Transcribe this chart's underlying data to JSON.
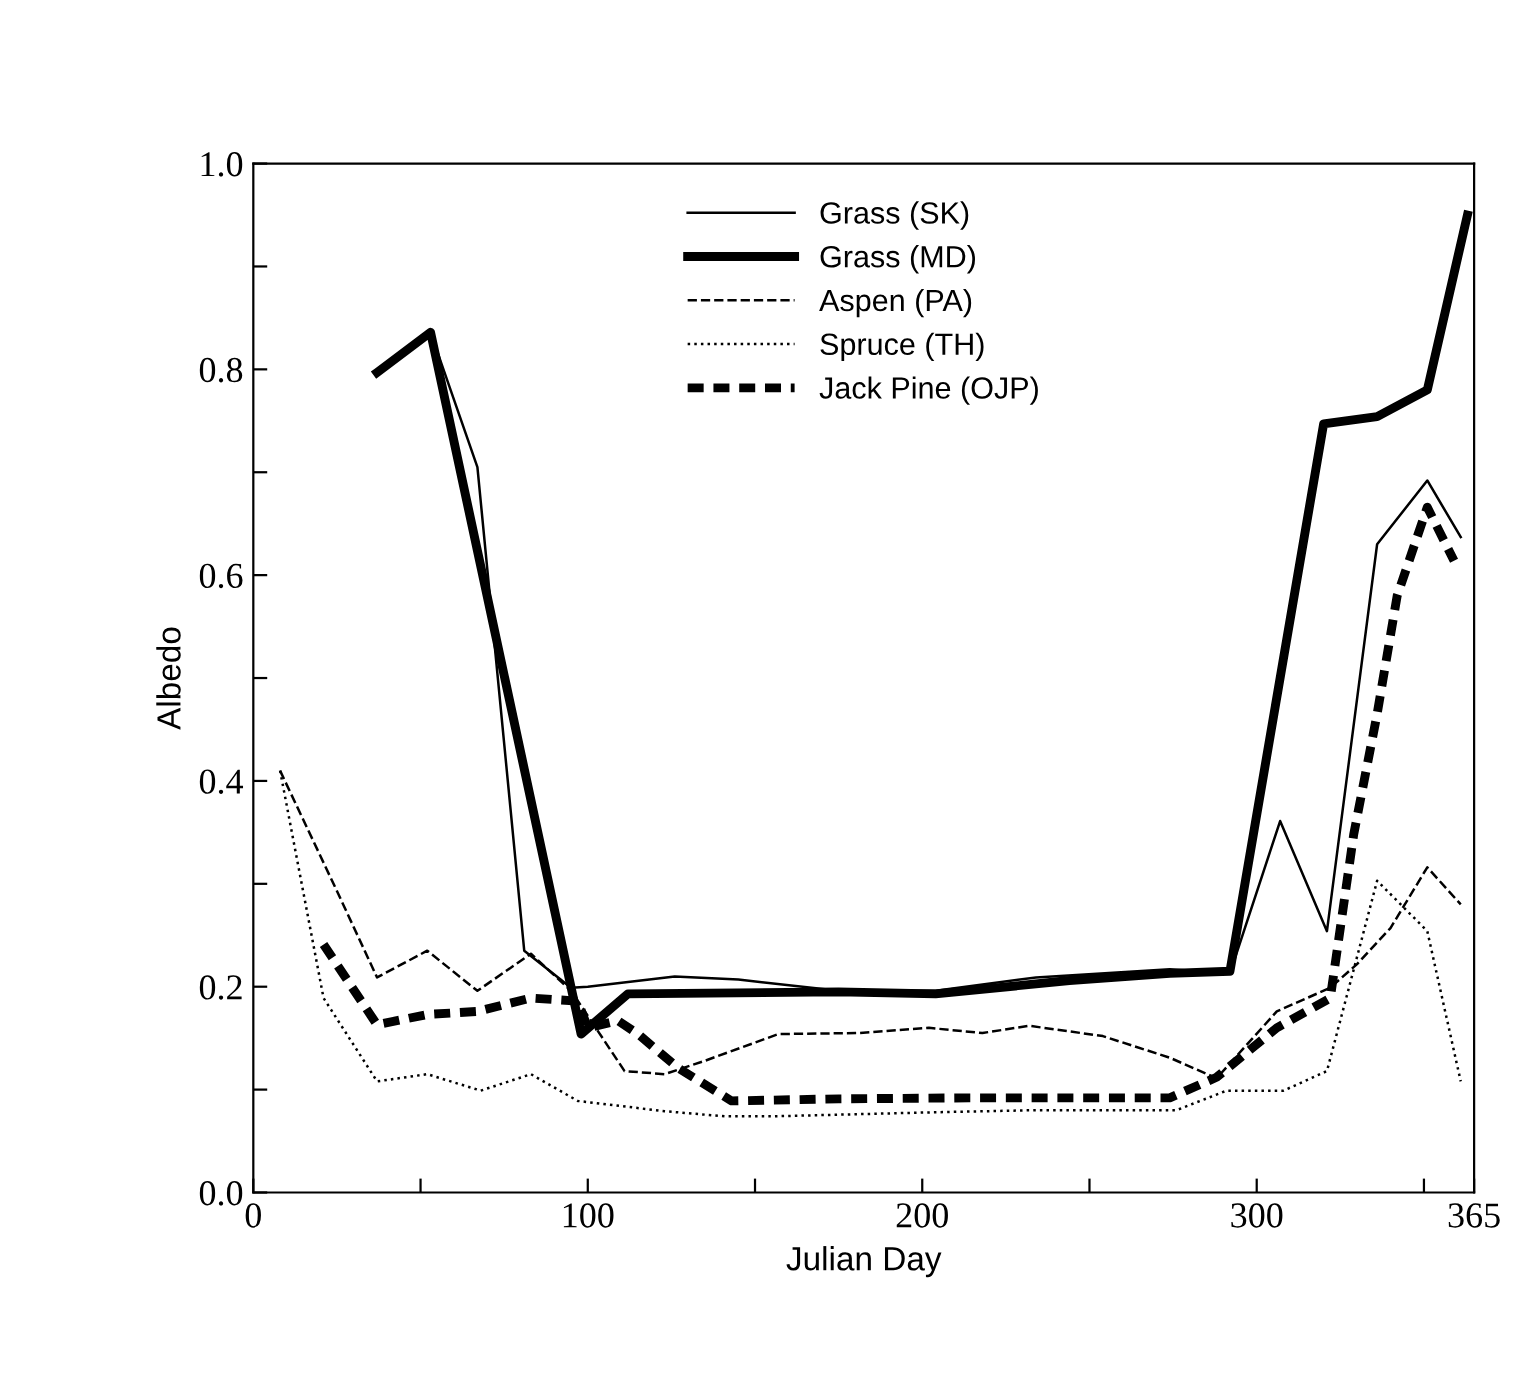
{
  "chart_data": {
    "type": "line",
    "xlabel": "Julian Day",
    "ylabel": "Albedo",
    "xlim": [
      0,
      365
    ],
    "ylim": [
      0,
      1.0
    ],
    "xticks": [
      0,
      {
        "value": 50,
        "label": null
      },
      100,
      {
        "value": 150,
        "label": null
      },
      200,
      {
        "value": 250,
        "label": null
      },
      300,
      {
        "value": 350,
        "label": null
      },
      365
    ],
    "yticks": [
      {
        "value": 0,
        "label": "0.0"
      },
      {
        "value": 0.1,
        "label": null
      },
      0.2,
      {
        "value": 0.3,
        "label": null
      },
      0.4,
      {
        "value": 0.5,
        "label": null
      },
      0.6,
      {
        "value": 0.7,
        "label": null
      },
      0.8,
      {
        "value": 0.9,
        "label": null
      },
      {
        "value": 1.0,
        "label": "1.0"
      }
    ],
    "grid": false,
    "legend": "top",
    "marker": "none",
    "series": [
      {
        "name": "Grass (SK)",
        "color": "#000000",
        "line_style": "solid",
        "x": [
          53,
          67,
          81,
          95,
          100,
          126,
          145,
          175,
          204,
          234,
          274,
          292,
          307,
          321,
          336,
          351,
          361
        ],
        "values": [
          0.836,
          0.705,
          0.235,
          0.199,
          0.2,
          0.21,
          0.207,
          0.196,
          0.196,
          0.209,
          0.217,
          0.213,
          0.361,
          0.254,
          0.63,
          0.692,
          0.637
        ]
      },
      {
        "name": "Grass (MD)",
        "color": "#000000",
        "line_style": "solid",
        "x": [
          37,
          53,
          98,
          112,
          175,
          204,
          244,
          274,
          292,
          320,
          336,
          351,
          363
        ],
        "values": [
          0.797,
          0.836,
          0.154,
          0.193,
          0.195,
          0.193,
          0.206,
          0.213,
          0.215,
          0.747,
          0.754,
          0.78,
          0.95
        ]
      },
      {
        "name": "Aspen (PA)",
        "color": "#000000",
        "line_style": "dashed",
        "x": [
          8,
          25,
          37,
          52,
          67,
          83,
          95,
          111,
          123,
          135,
          157,
          181,
          202,
          218,
          232,
          254,
          274,
          288,
          306,
          322,
          330,
          340,
          351,
          361
        ],
        "values": [
          0.41,
          0.293,
          0.209,
          0.235,
          0.196,
          0.232,
          0.196,
          0.118,
          0.115,
          0.128,
          0.154,
          0.155,
          0.16,
          0.155,
          0.162,
          0.152,
          0.131,
          0.111,
          0.176,
          0.199,
          0.222,
          0.257,
          0.316,
          0.28
        ]
      },
      {
        "name": "Spruce (TH)",
        "color": "#000000",
        "line_style": "dotted",
        "x": [
          8,
          21,
          37,
          52,
          68,
          83,
          97,
          123,
          141,
          155,
          204,
          234,
          276,
          291,
          308,
          321,
          336,
          351,
          361
        ],
        "values": [
          0.41,
          0.189,
          0.108,
          0.115,
          0.099,
          0.115,
          0.089,
          0.079,
          0.074,
          0.074,
          0.078,
          0.08,
          0.08,
          0.099,
          0.099,
          0.118,
          0.303,
          0.254,
          0.108
        ]
      },
      {
        "name": "Jack Pine (OJP)",
        "color": "#000000",
        "line_style": "dashed",
        "x": [
          21,
          37,
          52,
          67,
          83,
          97,
          100,
          109,
          115,
          127,
          143,
          175,
          214,
          274,
          288,
          306,
          322,
          329,
          336,
          342,
          351,
          359
        ],
        "values": [
          0.241,
          0.163,
          0.173,
          0.176,
          0.189,
          0.186,
          0.16,
          0.167,
          0.154,
          0.121,
          0.089,
          0.091,
          0.092,
          0.092,
          0.112,
          0.16,
          0.189,
          0.348,
          0.465,
          0.58,
          0.666,
          0.614
        ]
      }
    ]
  }
}
